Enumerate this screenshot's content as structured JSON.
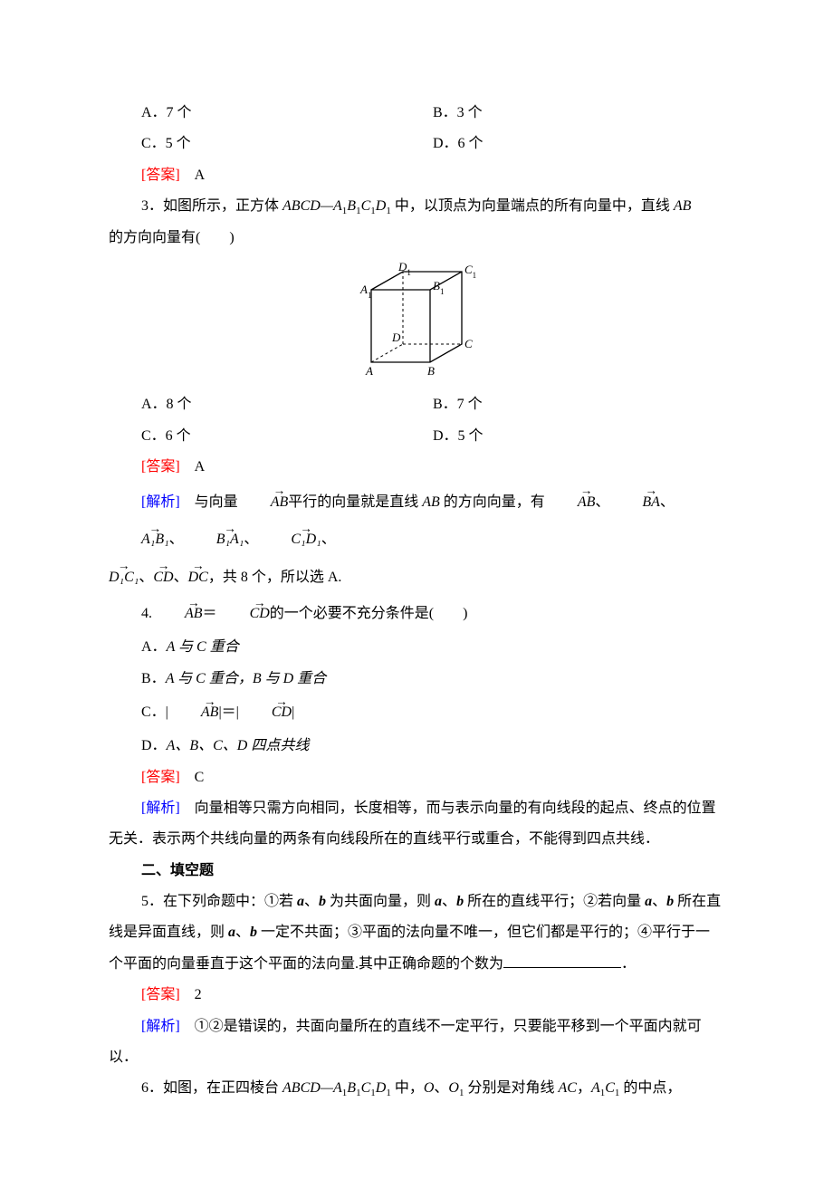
{
  "q_top": {
    "A": "A．7 个",
    "B": "B．3 个",
    "C": "C．5 个",
    "D": "D．6 个",
    "answer_label": "[答案]",
    "answer_value": "　A"
  },
  "q3": {
    "stem_prefix": "3．如图所示，正方体 ",
    "stem_cube": "ABCD—A",
    "stem_sub1": "1",
    "stem_cube2": "B",
    "stem_sub2": "1",
    "stem_cube3": "C",
    "stem_sub3": "1",
    "stem_cube4": "D",
    "stem_sub4": "1",
    "stem_mid": " 中，以顶点为向量端点的所有向量中，直线 ",
    "stem_ab": "AB",
    "stem_cont": "的方向向量有(　　)",
    "A": "A．8 个",
    "B": "B．7 个",
    "C": "C．6 个",
    "D": "D．5 个",
    "answer_label": "[答案]",
    "answer_value": "　A",
    "explain_label": "[解析]",
    "explain_p1": "　与向量",
    "explain_v1": "AB",
    "explain_p2": "平行的向量就是直线 ",
    "explain_ab": "AB",
    "explain_p3": " 的方向向量，有",
    "explain_vecs": [
      "AB",
      "BA",
      "A₁B₁",
      "B₁A₁",
      "C₁D₁"
    ],
    "explain_line2_vecs": [
      "D₁C₁",
      "CD",
      "DC"
    ],
    "explain_tail": "，共 8 个，所以选 A.",
    "cube_labels": {
      "A": "A",
      "B": "B",
      "C": "C",
      "D": "D",
      "A1": "A₁",
      "B1": "B₁",
      "C1": "C₁",
      "D1": "D₁"
    }
  },
  "q4": {
    "stem_num": "4.",
    "stem_v1": "AB",
    "stem_eq": "＝",
    "stem_v2": "CD",
    "stem_tail": "的一个必要不充分条件是(　　)",
    "A_pre": "A．",
    "A_txt": "A 与 C 重合",
    "B_pre": "B．",
    "B_txt": "A 与 C 重合，B 与 D 重合",
    "C_pre": "C．|",
    "C_v1": "AB",
    "C_mid": "|＝|",
    "C_v2": "CD",
    "C_end": "|",
    "D_pre": "D．",
    "D_txt": "A、B、C、D 四点共线",
    "answer_label": "[答案]",
    "answer_value": "　C",
    "explain_label": "[解析]",
    "explain_body": "　向量相等只需方向相同，长度相等，而与表示向量的有向线段的起点、终点的位置无关．表示两个共线向量的两条有向线段所在的直线平行或重合，不能得到四点共线．"
  },
  "section2": {
    "title": "二、填空题"
  },
  "q5": {
    "stem": "5．在下列命题中：①若 a、b 为共面向量，则 a、b 所在的直线平行；②若向量 a、b 所在直线是异面直线，则 a、b 一定不共面；③平面的法向量不唯一，但它们都是平行的；④平行于一个平面的向量垂直于这个平面的法向量.其中正确命题的个数为",
    "tail": "．",
    "answer_label": "[答案]",
    "answer_value": "　2",
    "explain_label": "[解析]",
    "explain_body": "　①②是错误的，共面向量所在的直线不一定平行，只要能平移到一个平面内就可以．"
  },
  "q6": {
    "stem_prefix": "6．如图，在正四棱台 ",
    "stem_cube": "ABCD—A",
    "sub1": "1",
    "cube2": "B",
    "sub2": "1",
    "cube3": "C",
    "sub3": "1",
    "cube4": "D",
    "sub4": "1",
    "stem_mid": " 中，",
    "O": "O",
    "comma": "、",
    "O1": "O",
    "O1sub": "1",
    "stem_tail1": " 分别是对角线 ",
    "AC": "AC",
    "comma2": "，",
    "A1C1a": "A",
    "A1C1s1": "1",
    "A1C1b": "C",
    "A1C1s2": "1",
    "stem_tail2": " 的中点，"
  },
  "colors": {
    "red": "#ff0000",
    "blue": "#0000ff",
    "black": "#000000",
    "bg": "#ffffff"
  },
  "figure": {
    "width": 140,
    "height": 130,
    "stroke": "#000000",
    "stroke_width": 1
  }
}
